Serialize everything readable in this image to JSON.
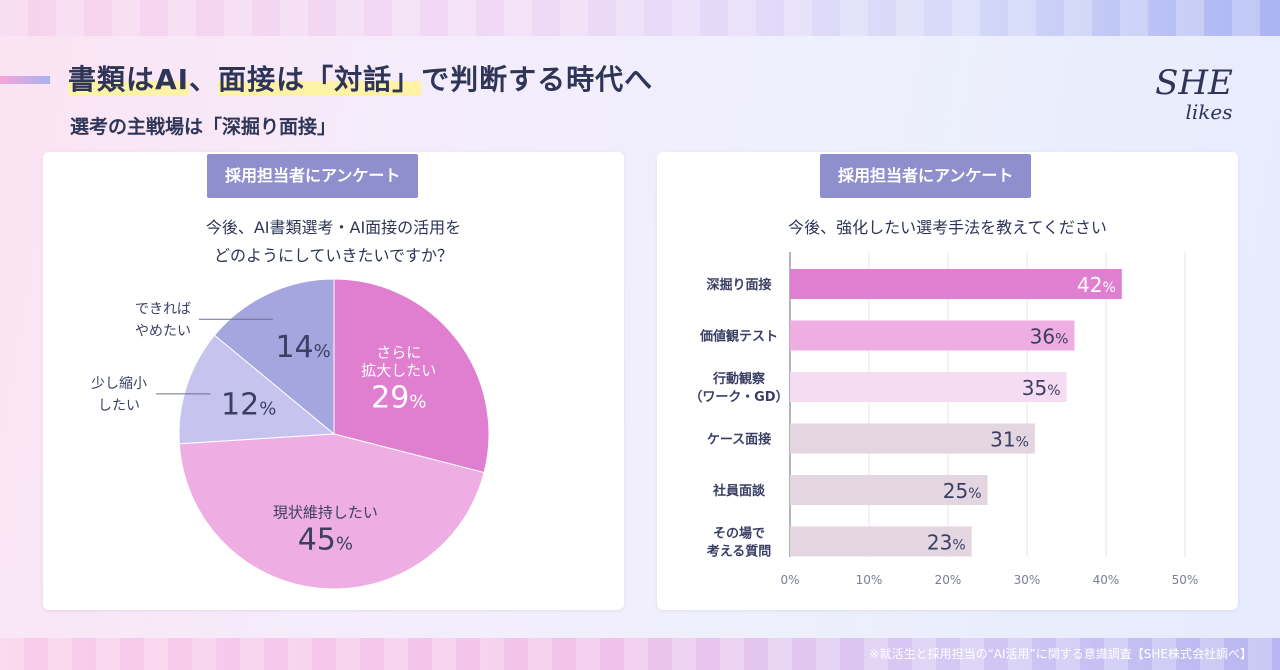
{
  "header": {
    "title_parts": [
      "書類はAI",
      "、",
      "面接は「対話」",
      "で判断する時代へ"
    ],
    "subtitle": "選考の主戦場は「深掘り面接」",
    "brand_line1": "SHE",
    "brand_line2": "likes"
  },
  "left_card": {
    "badge": "採用担当者にアンケート",
    "question_line1": "今後、AI書類選考・AI面接の活用を",
    "question_line2": "どのようにしていきたいですか？"
  },
  "right_card": {
    "badge": "採用担当者にアンケート",
    "question": "今後、強化したい選考手法を教えてください"
  },
  "footer": {
    "source": "※就活生と採用担当の“AI活用”に関する意識調査【SHE株式会社調べ】"
  },
  "colors": {
    "pie": [
      "#e07fd0",
      "#eeaee3",
      "#c6c4ef",
      "#a5a5df"
    ],
    "bars": [
      "#e07fd0",
      "#eeaee3",
      "#f6dcf2",
      "#e3d6e1",
      "#e3d6e1",
      "#e3d6e1"
    ],
    "badge": "#8f8fce",
    "title": "#2e3557"
  },
  "chart_data": [
    {
      "type": "pie",
      "slices": [
        {
          "label_lines": [
            "さらに",
            "拡大したい"
          ],
          "value": 29
        },
        {
          "label_lines": [
            "現状維持したい"
          ],
          "value": 45
        },
        {
          "label_lines": [
            "少し縮小",
            "したい"
          ],
          "value": 12
        },
        {
          "label_lines": [
            "できれば",
            "やめたい"
          ],
          "value": 14
        }
      ],
      "unit": "%"
    },
    {
      "type": "bar",
      "orientation": "horizontal",
      "categories": [
        [
          "深掘り面接"
        ],
        [
          "価値観テスト"
        ],
        [
          "行動観察",
          "（ワーク・GD）"
        ],
        [
          "ケース面接"
        ],
        [
          "社員面談"
        ],
        [
          "その場で",
          "考える質問"
        ]
      ],
      "values": [
        42,
        36,
        35,
        31,
        25,
        23
      ],
      "unit": "%",
      "xlim": [
        0,
        50
      ],
      "xticks": [
        "0%",
        "10%",
        "20%",
        "30%",
        "40%",
        "50%"
      ],
      "grid": true
    }
  ]
}
